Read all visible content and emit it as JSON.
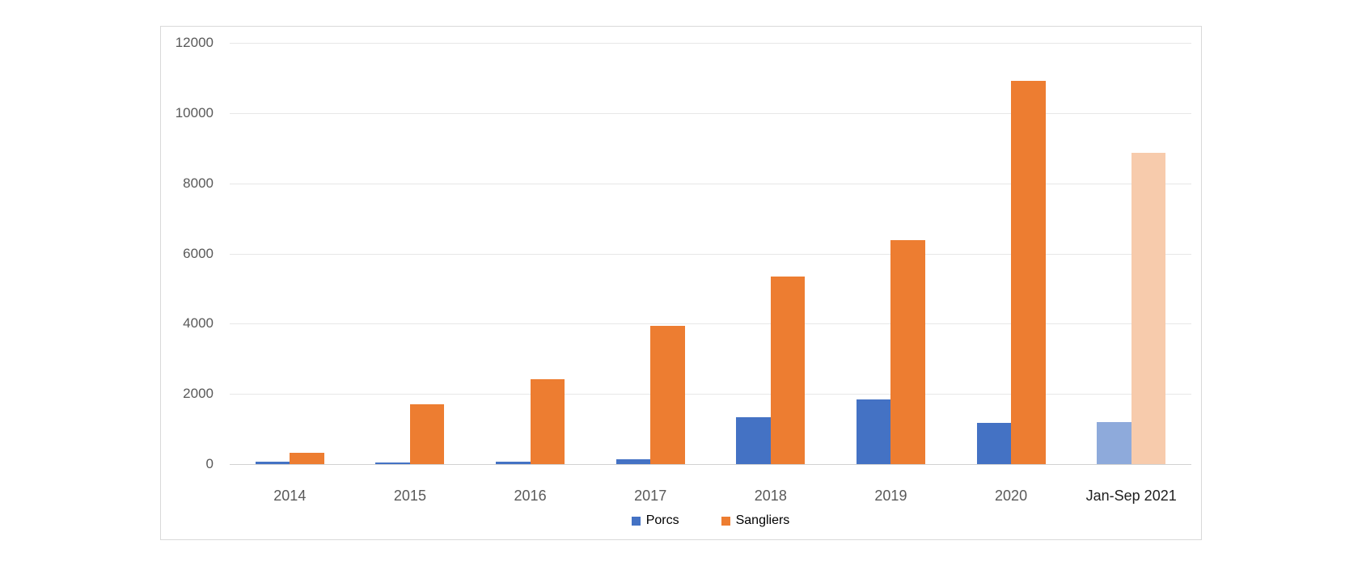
{
  "chart_data": {
    "type": "bar",
    "title": "",
    "xlabel": "",
    "ylabel": "",
    "categories": [
      "2014",
      "2015",
      "2016",
      "2017",
      "2018",
      "2019",
      "2020",
      "Jan-Sep 2021"
    ],
    "series": [
      {
        "name": "Porcs",
        "color": "#4472C4",
        "last_category_color": "#8EAADB",
        "values": [
          80,
          50,
          80,
          140,
          1340,
          1850,
          1180,
          1200
        ]
      },
      {
        "name": "Sangliers",
        "color": "#ED7D31",
        "last_category_color": "#F7CBAC",
        "values": [
          320,
          1700,
          2410,
          3940,
          5350,
          6380,
          10920,
          8870
        ]
      }
    ],
    "ylim": [
      0,
      12000
    ],
    "ytick_interval": 2000,
    "yticks": [
      "0",
      "2000",
      "4000",
      "6000",
      "8000",
      "10000",
      "12000"
    ],
    "grid": true,
    "legend_position": "bottom-center",
    "axis_text_color": "#595959",
    "last_category_label_color": "#1F1F1F",
    "legend_text_color": "#000000"
  }
}
